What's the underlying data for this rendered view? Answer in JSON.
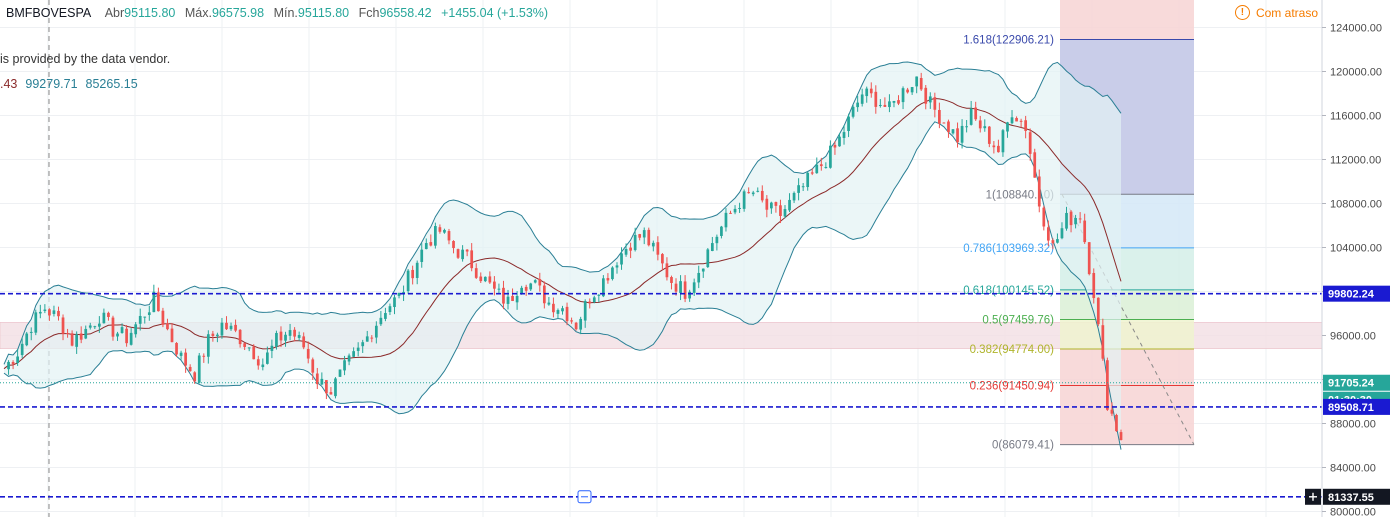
{
  "header": {
    "symbol": "BMFBOVESPA",
    "open_label": "Abr",
    "open_value": "95115.80",
    "high_label": "Máx.",
    "high_value": "96575.98",
    "low_label": "Mín.",
    "low_value": "95115.80",
    "close_label": "Fch",
    "close_value": "96558.42",
    "change": "+1455.04 (+1.53%)"
  },
  "vendor_note": "is provided by the data vendor.",
  "indicator_values": {
    "v1": ".43",
    "v2": "99279.71",
    "v3": "85265.15"
  },
  "delay_badge": "Com atraso",
  "colors": {
    "up": "#26a69a",
    "down": "#ef5350",
    "bb_band": "#2a7f95",
    "bb_basis": "#8b2a2a",
    "hline": "#1a1ad1",
    "price_dotted": "#26a69a"
  },
  "chart_data": {
    "type": "candlestick",
    "y_axis": {
      "ylim": [
        79500,
        126500
      ],
      "ticks": [
        80000,
        84000,
        88000,
        92000,
        96000,
        100000,
        104000,
        108000,
        112000,
        116000,
        120000,
        124000
      ],
      "tick_labels": [
        "80000.00",
        "84000.00",
        "88000.00",
        "92000.00",
        "96000.00",
        "100000.00",
        "104000.00",
        "108000.00",
        "112000.00",
        "116000.00",
        "120000.00",
        "124000.00"
      ]
    },
    "price_path": [
      93000,
      94500,
      97000,
      98500,
      97500,
      95500,
      96500,
      97800,
      96500,
      95800,
      97500,
      99200,
      96500,
      94000,
      92500,
      95500,
      97000,
      96200,
      95000,
      93500,
      95500,
      96500,
      95000,
      92000,
      91000,
      93000,
      94500,
      96500,
      98500,
      99500,
      102000,
      104500,
      105500,
      104000,
      103000,
      101500,
      100000,
      99000,
      101000,
      100500,
      99000,
      98500,
      97000,
      99500,
      101000,
      103000,
      104500,
      105200,
      103000,
      101000,
      100000,
      102000,
      104500,
      106500,
      108200,
      109000,
      107500,
      107000,
      108500,
      110000,
      111500,
      113000,
      115500,
      118000,
      117500,
      116500,
      118200,
      119500,
      117000,
      115500,
      114000,
      116000,
      114500,
      112800,
      116500,
      115000,
      108000,
      104000,
      106500,
      107000,
      100000,
      90000,
      86500
    ],
    "candles_per_point": 3,
    "horizontal_lines": [
      {
        "value": 99802.24,
        "label": "99802.24"
      },
      {
        "value": 89508.71,
        "label": "89508.71"
      },
      {
        "value": 81337.55,
        "label": "81337.55"
      }
    ],
    "last_price": {
      "value": 91705.24,
      "label": "91705.24",
      "countdown": "01:30:30"
    },
    "zone": {
      "from": 94800,
      "to": 97200
    },
    "fibonacci": [
      {
        "level": "1.618",
        "label": "1.618(122906.21)",
        "price": 122906.21,
        "color": "#3949ab",
        "fill": "#c5cae9"
      },
      {
        "level": "1",
        "label": "1(108840.10)",
        "price": 108840.1,
        "color": "#787b86",
        "fill": "#e3e3e3"
      },
      {
        "level": "0.786",
        "label": "0.786(103969.32)",
        "price": 103969.32,
        "color": "#42a5f5",
        "fill": "#d4e8f7"
      },
      {
        "level": "0.618",
        "label": "0.618(100145.52)",
        "price": 100145.52,
        "color": "#26a69a",
        "fill": "#d3efe8"
      },
      {
        "level": "0.5",
        "label": "0.5(97459.76)",
        "price": 97459.76,
        "color": "#4caf50",
        "fill": "#dbf0d6"
      },
      {
        "level": "0.382",
        "label": "0.382(94774.00)",
        "price": 94774.0,
        "color": "#afb42b",
        "fill": "#eef3cf"
      },
      {
        "level": "0.236",
        "label": "0.236(91450.94)",
        "price": 91450.94,
        "color": "#e53935",
        "fill": "#f7d4d4"
      },
      {
        "level": "0",
        "label": "0(86079.41)",
        "price": 86079.41,
        "color": "#787b86",
        "fill": "#f7d4d4"
      }
    ],
    "fib_top_fill": {
      "price": 126500,
      "fill": "#f7d4d4"
    },
    "trend_line": {
      "from": 108840.1,
      "to": 86079.41
    }
  }
}
